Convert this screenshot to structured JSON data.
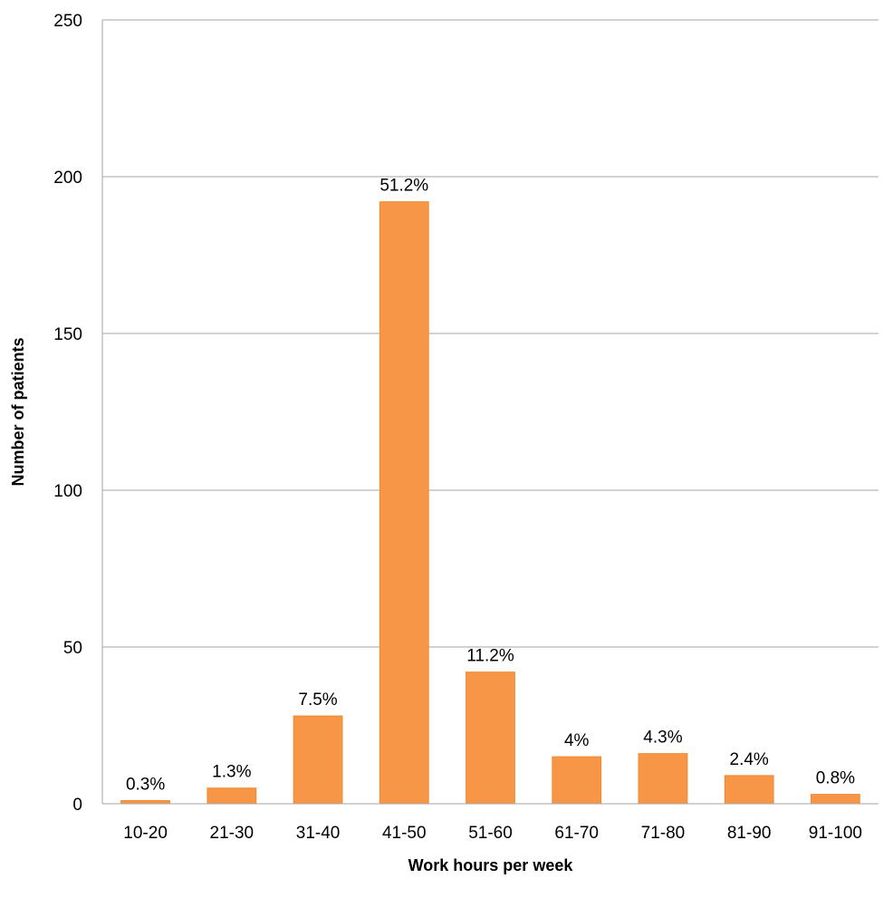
{
  "chart_data": {
    "type": "bar",
    "categories": [
      "10-20",
      "21-30",
      "31-40",
      "41-50",
      "51-60",
      "61-70",
      "71-80",
      "81-90",
      "91-100"
    ],
    "values": [
      1,
      5,
      28,
      192,
      42,
      15,
      16,
      9,
      3
    ],
    "data_labels": [
      "0.3%",
      "1.3%",
      "7.5%",
      "51.2%",
      "11.2%",
      "4%",
      "4.3%",
      "2.4%",
      "0.8%"
    ],
    "title": "",
    "xlabel": "Work hours per week",
    "ylabel": "Number of patients",
    "ylim": [
      0,
      250
    ],
    "yticks": [
      0,
      50,
      100,
      150,
      200,
      250
    ],
    "grid": true,
    "legend": "none",
    "bar_color": "#f79646"
  }
}
